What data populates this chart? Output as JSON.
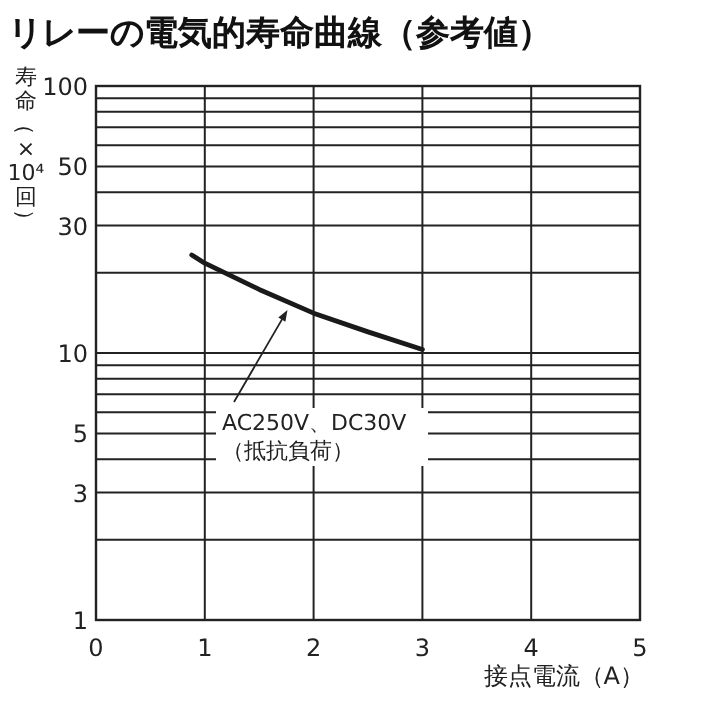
{
  "chart_data": {
    "type": "line",
    "title": "リレーの電気的寿命曲線（参考値）",
    "xlabel": "接点電流（A）",
    "ylabel": "寿命（×10⁴回）",
    "x": [
      0.88,
      1,
      1.5,
      2,
      2.5,
      3
    ],
    "series": [
      {
        "color": "#1a1a1a",
        "values": [
          23.3,
          21.7,
          17.3,
          14.1,
          12,
          10.3
        ]
      }
    ],
    "xlim": [
      0,
      5
    ],
    "xticks": [
      0,
      1,
      2,
      3,
      4,
      5
    ],
    "ylim": [
      1,
      100
    ],
    "log": true,
    "yticks": [
      1,
      {
        "value": 2,
        "label": null
      },
      3,
      {
        "value": 4,
        "label": null
      },
      5,
      {
        "value": 6,
        "label": null
      },
      {
        "value": 7,
        "label": null
      },
      {
        "value": 8,
        "label": null
      },
      {
        "value": 9,
        "label": null
      },
      10,
      {
        "value": 20,
        "label": null
      },
      30,
      {
        "value": 40,
        "label": null
      },
      50,
      {
        "value": 60,
        "label": null
      },
      {
        "value": 70,
        "label": null
      },
      {
        "value": 80,
        "label": null
      },
      {
        "value": 90,
        "label": null
      },
      100
    ],
    "grid": true,
    "marker": "none",
    "line_style": "solid",
    "annotations": [
      {
        "text": "AC250V、DC30V（抵抗負荷）",
        "x": 1.76,
        "y": 14.5
      }
    ]
  }
}
